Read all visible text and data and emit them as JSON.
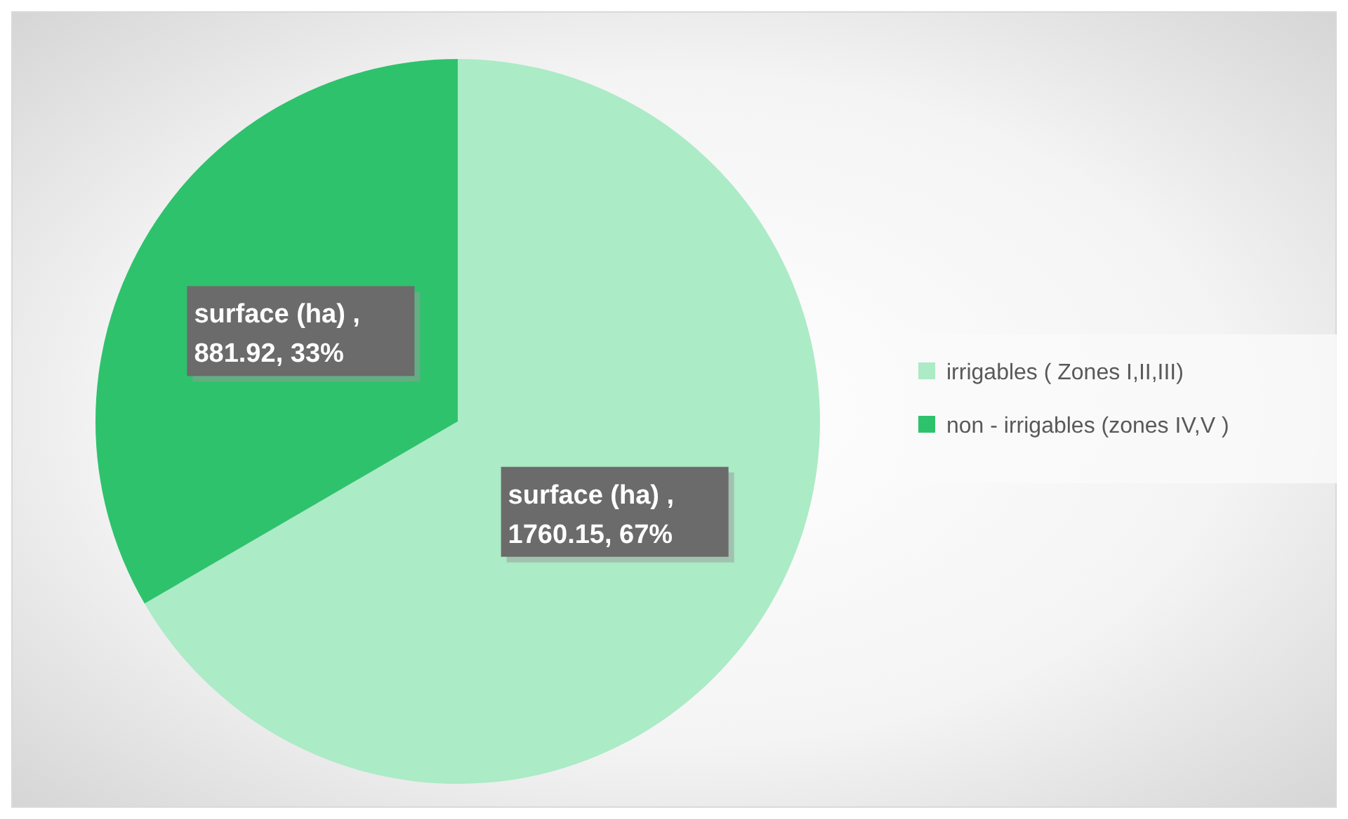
{
  "chart_data": {
    "type": "pie",
    "categories": [
      "irrigables ( Zones  I,II,III)",
      "non - irrigables (zones IV,V )"
    ],
    "values": [
      1760.15,
      881.92
    ],
    "colors": [
      "#abebc6",
      "#2ec26c"
    ],
    "value_labels": [
      "surface (ha) ,\n1760.15, 67%",
      "surface (ha) ,\n881.92, 33%"
    ],
    "legend": "right"
  }
}
